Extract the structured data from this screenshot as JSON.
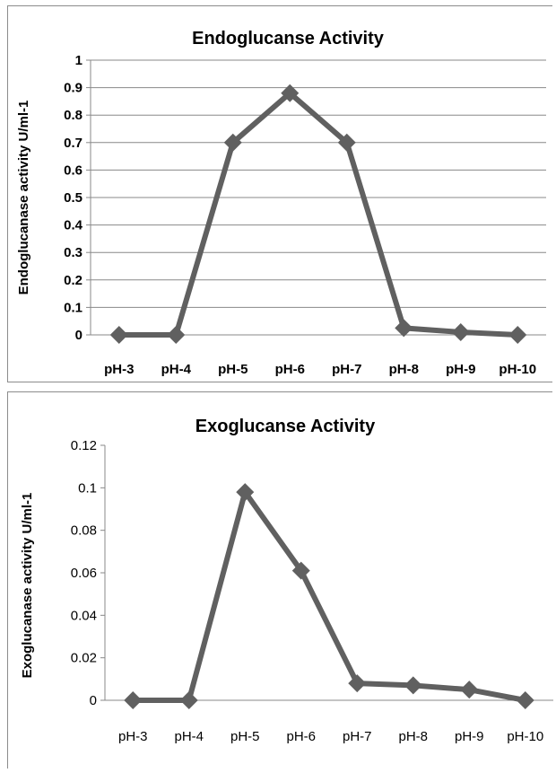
{
  "chart_data": [
    {
      "type": "line",
      "title": "Endoglucanse Activity",
      "xlabel": "",
      "ylabel": "Endoglucanase activity U/ml-1",
      "categories": [
        "pH-3",
        "pH-4",
        "pH-5",
        "pH-6",
        "pH-7",
        "pH-8",
        "pH-9",
        "pH-10"
      ],
      "series": [
        {
          "values": [
            0,
            0,
            0.7,
            0.88,
            0.7,
            0.025,
            0.01,
            0
          ]
        }
      ],
      "ylim": [
        0,
        1
      ],
      "yticks": [
        "0",
        "0.1",
        "0.2",
        "0.3",
        "0.4",
        "0.5",
        "0.6",
        "0.7",
        "0.8",
        "0.9",
        "1"
      ],
      "grid": true,
      "legend": "none",
      "line_color": "#606060",
      "grid_color": "#888888"
    },
    {
      "type": "line",
      "title": "Exoglucanse  Activity",
      "xlabel": "",
      "ylabel": "Exoglucanase  activity  U/ml-1",
      "categories": [
        "pH-3",
        "pH-4",
        "pH-5",
        "pH-6",
        "pH-7",
        "pH-8",
        "pH-9",
        "pH-10"
      ],
      "series": [
        {
          "values": [
            0,
            0,
            0.098,
            0.061,
            0.008,
            0.007,
            0.005,
            0
          ]
        }
      ],
      "ylim": [
        0,
        0.12
      ],
      "yticks": [
        "0",
        "0.02",
        "0.04",
        "0.06",
        "0.08",
        "0.1",
        "0.12"
      ],
      "grid": false,
      "legend": "none",
      "line_color": "#606060"
    }
  ]
}
